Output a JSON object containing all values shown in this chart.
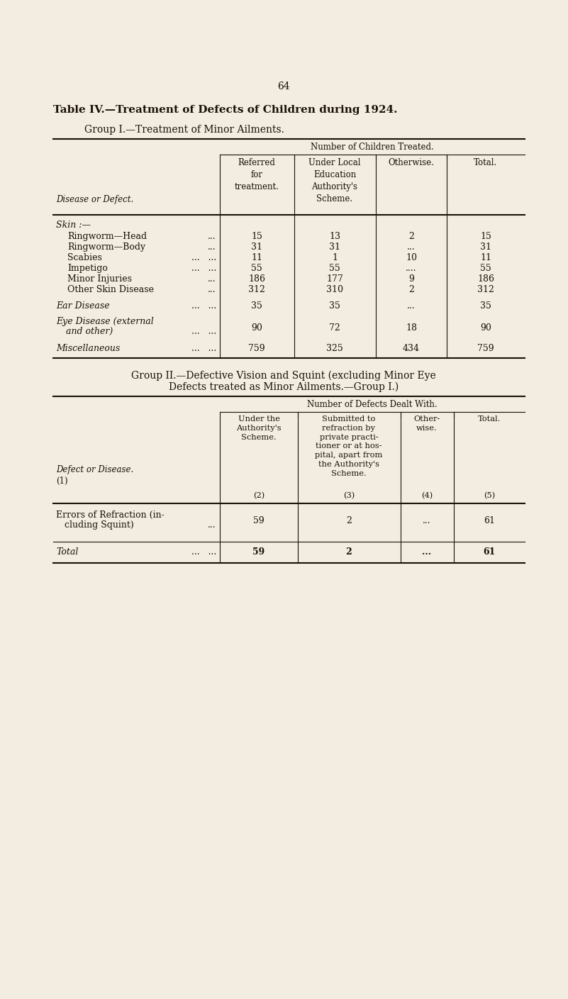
{
  "bg_color": "#f2ede0",
  "text_color": "#1a1008",
  "page_number": "64",
  "main_title": "Table IV.—Treatment of Defects of Children during 1924.",
  "group1_title": "Group I.—Treatment of Minor Ailments.",
  "group1_header_span": "Number of Children Treated.",
  "group1_col_headers": [
    "Referred\nfor\ntreatment.",
    "Under Local\nEducation\nAuthority's\nScheme.",
    "Otherwise.",
    "Total."
  ],
  "group1_row_label_header": "Disease or Defect.",
  "group1_rows": [
    {
      "label": "Skin :—",
      "skin_header": true,
      "vals": [
        "",
        "",
        "",
        ""
      ]
    },
    {
      "label": "Ringworm—Head",
      "dots": "...",
      "indent": true,
      "vals": [
        "15",
        "13",
        "2",
        "15"
      ]
    },
    {
      "label": "Ringworm—Body",
      "dots": "...",
      "indent": true,
      "vals": [
        "31",
        "31",
        "...",
        "31"
      ]
    },
    {
      "label": "Scabies",
      "dots": "...   ...",
      "indent": true,
      "vals": [
        "11",
        "1",
        "10",
        "11"
      ]
    },
    {
      "label": "Impetigo",
      "dots": "...   ...",
      "indent": true,
      "vals": [
        "55",
        "55",
        "....",
        "55"
      ]
    },
    {
      "label": "Minor Injuries",
      "dots": "...",
      "indent": true,
      "vals": [
        "186",
        "177",
        "9",
        "186"
      ]
    },
    {
      "label": "Other Skin Disease",
      "dots": "...",
      "indent": true,
      "vals": [
        "312",
        "310",
        "2",
        "312"
      ]
    },
    {
      "label": "Ear Disease",
      "dots": "...   ...",
      "indent": false,
      "small_caps": true,
      "vals": [
        "35",
        "35",
        "...",
        "35"
      ]
    },
    {
      "label": "Eye Disease (external\nand other)",
      "dots": "...   ...",
      "indent": false,
      "small_caps": true,
      "two_line": true,
      "vals": [
        "90",
        "72",
        "18",
        "90"
      ]
    },
    {
      "label": "Miscellaneous",
      "dots": "...   ...",
      "indent": false,
      "small_caps": true,
      "vals": [
        "759",
        "325",
        "434",
        "759"
      ]
    }
  ],
  "group2_title_line1": "Group II.—Defective Vision and Squint (excluding Minor Eye",
  "group2_title_line2": "Defects treated as Minor Ailments.—Group I.)",
  "group2_header_span": "Number of Defects Dealt With.",
  "group2_col_header1": "Under the\nAuthority's\nScheme.",
  "group2_col_header2": "Submitted to\nrefraction by\nprivate practi-\ntioner or at hos-\npital, apart from\nthe Authority's\nScheme.",
  "group2_col_header3": "Other-\nwise.",
  "group2_col_header4": "Total.",
  "group2_row_label_header": "Defect or Disease.",
  "group2_rows": [
    {
      "label": "Errors of Refraction (in-\ncluding Squint)",
      "dots": "...",
      "vals": [
        "59",
        "2",
        "...",
        "61"
      ]
    },
    {
      "label": "Total",
      "dots": "...   ...",
      "bold": true,
      "vals": [
        "59",
        "2",
        "...",
        "61"
      ]
    }
  ]
}
